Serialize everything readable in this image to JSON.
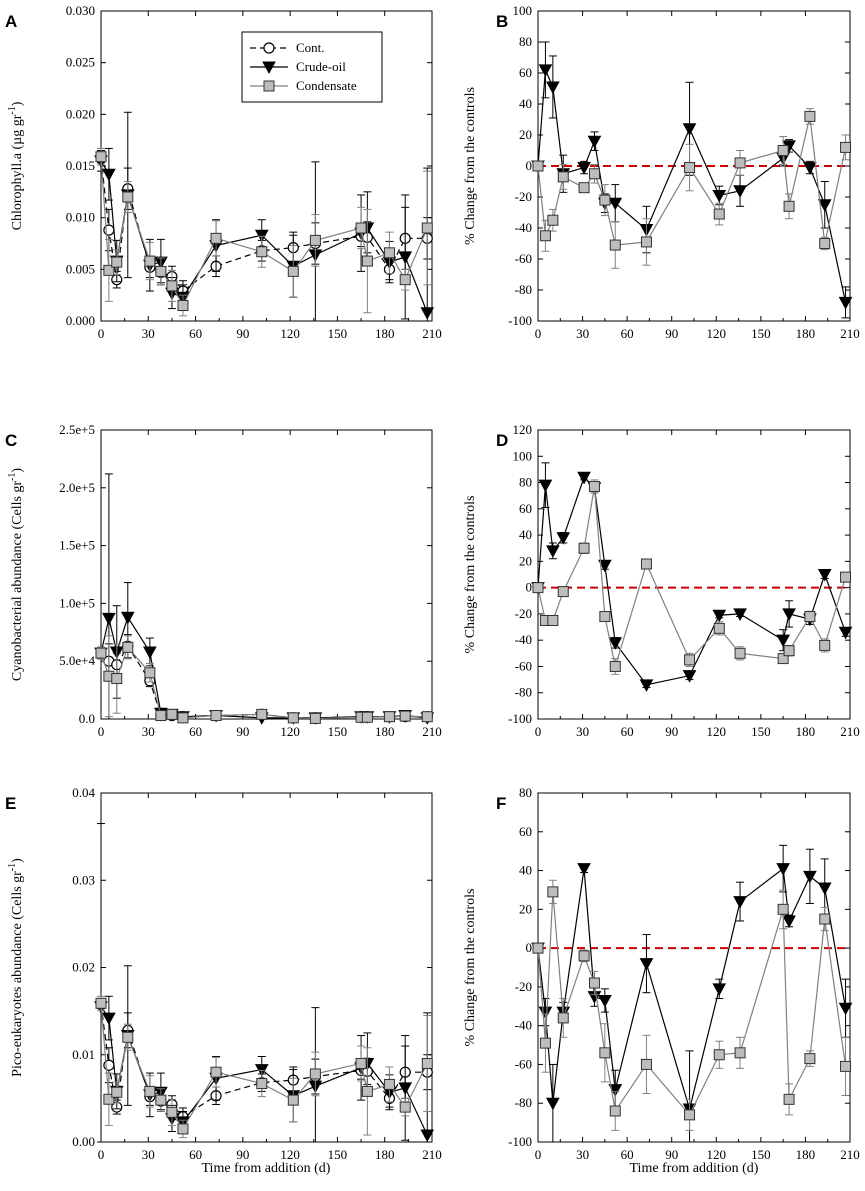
{
  "figure": {
    "xlabel": "Time from addition (d)",
    "legend": [
      "Cont.",
      "Crude-oil",
      "Condensate"
    ],
    "colors": {
      "control": "#000000",
      "crude": "#000000",
      "condensate": "#808080",
      "marker_fill_grey": "#bdbdbd",
      "zero_line": "#cc0000"
    }
  },
  "chart_data": [
    {
      "panel": "A",
      "type": "line",
      "ylabel": "Chlorophyll.a (µg gr",
      "ylabel_sup": "-1",
      "ylabel_end": ")",
      "xlim": [
        0,
        210
      ],
      "ylim": [
        0,
        0.03
      ],
      "xticks": [
        "0",
        "30",
        "60",
        "90",
        "120",
        "150",
        "180",
        "210"
      ],
      "yticks": [
        "0.000",
        "0.005",
        "0.010",
        "0.015",
        "0.020",
        "0.025",
        "0.030"
      ],
      "legend_location": "top-center",
      "series": [
        {
          "name": "Cont.",
          "marker": "circle",
          "x": [
            0,
            5,
            10,
            17,
            31,
            38,
            45,
            52,
            73,
            102,
            122,
            136,
            165,
            169,
            183,
            193,
            207
          ],
          "y": [
            0.0158,
            0.0088,
            0.004,
            0.0128,
            0.0052,
            0.0047,
            0.0043,
            0.0029,
            0.0053,
            0.0068,
            0.0071,
            0.0075,
            0.0082,
            0.0081,
            0.005,
            0.008,
            0.008
          ],
          "err": [
            0.0005,
            0.002,
            0.0008,
            0.002,
            0.001,
            0.001,
            0.001,
            0.001,
            0.001,
            0.001,
            0.0015,
            0.002,
            0.001,
            0.0015,
            0.001,
            0.003,
            0.002
          ]
        },
        {
          "name": "Crude-oil",
          "marker": "triangle",
          "x": [
            0,
            5,
            10,
            17,
            31,
            38,
            45,
            52,
            73,
            102,
            122,
            136,
            165,
            169,
            183,
            193,
            207
          ],
          "y": [
            0.0155,
            0.0142,
            0.0058,
            0.0122,
            0.0054,
            0.0057,
            0.0027,
            0.0023,
            0.0073,
            0.0083,
            0.0053,
            0.0064,
            0.0085,
            0.009,
            0.0057,
            0.0062,
            0.0008
          ],
          "err": [
            0.001,
            0.0025,
            0.002,
            0.008,
            0.0025,
            0.0022,
            0.0015,
            0.0012,
            0.0025,
            0.0015,
            0.003,
            0.009,
            0.0037,
            0.0035,
            0.002,
            0.006,
            0.014
          ]
        },
        {
          "name": "Condensate",
          "marker": "square",
          "x": [
            0,
            5,
            10,
            17,
            31,
            38,
            45,
            52,
            73,
            102,
            122,
            136,
            165,
            169,
            183,
            193,
            207
          ],
          "y": [
            0.0159,
            0.0049,
            0.0057,
            0.012,
            0.0058,
            0.0048,
            0.0034,
            0.0015,
            0.008,
            0.0067,
            0.0048,
            0.0078,
            0.009,
            0.0058,
            0.0066,
            0.004,
            0.009
          ],
          "err": [
            0.0008,
            0.003,
            0.0012,
            0.0015,
            0.0018,
            0.0013,
            0.0015,
            0.001,
            0.0017,
            0.0015,
            0.0025,
            0.0025,
            0.002,
            0.005,
            0.002,
            0.001,
            0.0055
          ]
        }
      ]
    },
    {
      "panel": "B",
      "type": "line",
      "ylabel": "% Change from the controls",
      "xlim": [
        0,
        210
      ],
      "ylim": [
        -100,
        100
      ],
      "xticks": [
        "0",
        "30",
        "60",
        "90",
        "120",
        "150",
        "180",
        "210"
      ],
      "yticks": [
        "-100",
        "-80",
        "-60",
        "-40",
        "-20",
        "0",
        "20",
        "40",
        "60",
        "80",
        "100"
      ],
      "zero_line": true,
      "series": [
        {
          "name": "Crude-oil",
          "marker": "triangle",
          "x": [
            0,
            5,
            10,
            17,
            31,
            38,
            45,
            52,
            73,
            102,
            122,
            136,
            165,
            169,
            183,
            193,
            207
          ],
          "y": [
            0,
            62,
            51,
            -5,
            -1,
            16,
            -24,
            -24,
            -41,
            24,
            -19,
            -16,
            5,
            13,
            -1,
            -25,
            -88
          ],
          "err": [
            0,
            18,
            20,
            12,
            4,
            6,
            6,
            12,
            15,
            30,
            6,
            10,
            5,
            4,
            4,
            15,
            10
          ]
        },
        {
          "name": "Condensate",
          "marker": "square",
          "x": [
            0,
            5,
            10,
            17,
            31,
            38,
            45,
            52,
            73,
            102,
            122,
            136,
            165,
            169,
            183,
            193,
            207
          ],
          "y": [
            0,
            -45,
            -35,
            -7,
            -14,
            -5,
            -22,
            -51,
            -49,
            -1,
            -31,
            2,
            10,
            -26,
            32,
            -50,
            12
          ],
          "err": [
            0,
            10,
            7,
            8,
            3,
            6,
            10,
            15,
            15,
            15,
            7,
            8,
            9,
            8,
            5,
            4,
            8
          ]
        }
      ]
    },
    {
      "panel": "C",
      "type": "line",
      "ylabel": "Cyanobacterial abundance (Cells gr",
      "ylabel_sup": "-1",
      "ylabel_end": ")",
      "xlim": [
        0,
        210
      ],
      "ylim": [
        0,
        250000
      ],
      "xticks": [
        "0",
        "30",
        "60",
        "90",
        "120",
        "150",
        "180",
        "210"
      ],
      "yticks": [
        "0.0",
        "5.0e+4",
        "1.0e+5",
        "1.5e+5",
        "2.0e+5",
        "2.5e+5"
      ],
      "series": [
        {
          "name": "Cont.",
          "marker": "circle",
          "x": [
            0,
            5,
            10,
            17,
            31,
            38,
            45,
            52,
            73,
            102,
            122,
            136,
            165,
            169,
            183,
            193,
            207
          ],
          "y": [
            57000,
            50000,
            47000,
            63000,
            33000,
            3000,
            3000,
            2000,
            3000,
            4000,
            1000,
            1000,
            2000,
            2000,
            2000,
            2000,
            2000
          ],
          "err": [
            5000,
            15000,
            10000,
            10000,
            5000,
            1000,
            1000,
            800,
            1000,
            1000,
            500,
            500,
            1000,
            1000,
            1000,
            1000,
            1000
          ]
        },
        {
          "name": "Crude-oil",
          "marker": "triangle",
          "x": [
            0,
            5,
            10,
            17,
            31,
            38,
            45,
            52,
            73,
            102,
            122,
            136,
            165,
            169,
            183,
            193,
            207
          ],
          "y": [
            57000,
            87000,
            58000,
            88000,
            58000,
            5000,
            4000,
            2000,
            3000,
            1000,
            1000,
            1000,
            2000,
            2000,
            2000,
            3000,
            1000
          ],
          "err": [
            5000,
            125000,
            40000,
            30000,
            12000,
            2000,
            1500,
            1000,
            1000,
            800,
            500,
            500,
            1000,
            1000,
            1000,
            1000,
            500
          ]
        },
        {
          "name": "Condensate",
          "marker": "square",
          "x": [
            0,
            5,
            10,
            17,
            31,
            38,
            45,
            52,
            73,
            102,
            122,
            136,
            165,
            169,
            183,
            193,
            207
          ],
          "y": [
            57000,
            37000,
            35000,
            62000,
            40000,
            3000,
            4000,
            1000,
            3000,
            4000,
            1000,
            500,
            1500,
            1500,
            2000,
            2500,
            2000
          ],
          "err": [
            5000,
            35000,
            30000,
            10000,
            8000,
            1000,
            1000,
            500,
            1000,
            1500,
            500,
            300,
            800,
            800,
            800,
            800,
            800
          ]
        }
      ]
    },
    {
      "panel": "D",
      "type": "line",
      "ylabel": "% Change from the controls",
      "xlim": [
        0,
        210
      ],
      "ylim": [
        -100,
        120
      ],
      "xticks": [
        "0",
        "30",
        "60",
        "90",
        "120",
        "150",
        "180",
        "210"
      ],
      "yticks": [
        "-100",
        "-80",
        "-60",
        "-40",
        "-20",
        "0",
        "20",
        "40",
        "60",
        "80",
        "100",
        "120"
      ],
      "zero_line": true,
      "series": [
        {
          "name": "Crude-oil",
          "marker": "triangle",
          "x": [
            0,
            5,
            10,
            17,
            31,
            38,
            45,
            52,
            73,
            102,
            122,
            136,
            165,
            169,
            183,
            193,
            207
          ],
          "y": [
            0,
            78,
            28,
            38,
            84,
            76,
            17,
            -42,
            -74,
            -67,
            -21,
            -20,
            -40,
            -20,
            -24,
            10,
            -34
          ],
          "err": [
            0,
            17,
            6,
            4,
            2,
            4,
            3,
            4,
            2,
            3,
            2,
            2,
            8,
            10,
            4,
            3,
            3
          ]
        },
        {
          "name": "Condensate",
          "marker": "square",
          "x": [
            0,
            5,
            10,
            17,
            31,
            38,
            45,
            52,
            73,
            102,
            122,
            136,
            165,
            169,
            183,
            193,
            207
          ],
          "y": [
            0,
            -25,
            -25,
            -3,
            30,
            77,
            -22,
            -60,
            18,
            -55,
            -31,
            -50,
            -54,
            -48,
            -22,
            -44,
            8
          ],
          "err": [
            0,
            3,
            3,
            3,
            4,
            5,
            3,
            6,
            3,
            5,
            5,
            5,
            3,
            4,
            4,
            5,
            3
          ]
        }
      ]
    },
    {
      "panel": "E",
      "type": "line",
      "ylabel": "Pico-eukaryotes abundance (Cells gr",
      "ylabel_sup": "-1",
      "ylabel_end": ")",
      "xlim": [
        0,
        210
      ],
      "ylim": [
        0,
        0.04
      ],
      "xticks": [
        "0",
        "30",
        "60",
        "90",
        "120",
        "150",
        "180",
        "210"
      ],
      "yticks": [
        "0.00",
        "0.01",
        "0.02",
        "0.03",
        "0.04"
      ],
      "series": [
        {
          "name": "Cont.",
          "marker": "circle",
          "x": [
            0,
            5,
            10,
            17,
            31,
            38,
            45,
            52,
            73,
            102,
            122,
            136,
            165,
            169,
            183,
            193,
            207
          ],
          "y": [
            0.0158,
            0.0088,
            0.004,
            0.0128,
            0.0052,
            0.0047,
            0.0043,
            0.0029,
            0.0053,
            0.0068,
            0.0071,
            0.0075,
            0.0082,
            0.0081,
            0.005,
            0.008,
            0.008
          ],
          "err": [
            0.0005,
            0.002,
            0.0008,
            0.002,
            0.001,
            0.001,
            0.001,
            0.001,
            0.001,
            0.001,
            0.0015,
            0.002,
            0.001,
            0.0015,
            0.001,
            0.003,
            0.002
          ]
        },
        {
          "name": "Crude-oil",
          "marker": "triangle",
          "x": [
            0,
            5,
            10,
            17,
            31,
            38,
            45,
            52,
            73,
            102,
            122,
            136,
            165,
            169,
            183,
            193,
            207
          ],
          "y": [
            0.0155,
            0.0142,
            0.0058,
            0.0122,
            0.0054,
            0.0057,
            0.0027,
            0.0023,
            0.0073,
            0.0083,
            0.0053,
            0.0064,
            0.0085,
            0.009,
            0.0057,
            0.0062,
            0.0008
          ],
          "err": [
            0.021,
            0.0025,
            0.002,
            0.008,
            0.0025,
            0.0022,
            0.0015,
            0.0012,
            0.0025,
            0.0015,
            0.003,
            0.009,
            0.0037,
            0.0035,
            0.002,
            0.006,
            0.014
          ]
        },
        {
          "name": "Condensate",
          "marker": "square",
          "x": [
            0,
            5,
            10,
            17,
            31,
            38,
            45,
            52,
            73,
            102,
            122,
            136,
            165,
            169,
            183,
            193,
            207
          ],
          "y": [
            0.0159,
            0.0049,
            0.0057,
            0.012,
            0.0058,
            0.0048,
            0.0034,
            0.0015,
            0.008,
            0.0067,
            0.0048,
            0.0078,
            0.009,
            0.0058,
            0.0066,
            0.004,
            0.009
          ],
          "err": [
            0.0008,
            0.003,
            0.0012,
            0.0015,
            0.0018,
            0.0013,
            0.0015,
            0.001,
            0.0017,
            0.0015,
            0.0025,
            0.0025,
            0.002,
            0.005,
            0.002,
            0.001,
            0.0055
          ]
        }
      ]
    },
    {
      "panel": "F",
      "type": "line",
      "ylabel": "% Change from the controls",
      "xlim": [
        0,
        210
      ],
      "ylim": [
        -100,
        80
      ],
      "xticks": [
        "0",
        "30",
        "60",
        "90",
        "120",
        "150",
        "180",
        "210"
      ],
      "yticks": [
        "-100",
        "-80",
        "-60",
        "-40",
        "-20",
        "0",
        "20",
        "40",
        "60",
        "80"
      ],
      "zero_line": true,
      "series": [
        {
          "name": "Crude-oil",
          "marker": "triangle",
          "x": [
            0,
            5,
            10,
            17,
            31,
            38,
            45,
            52,
            73,
            102,
            122,
            136,
            165,
            169,
            183,
            193,
            207
          ],
          "y": [
            0,
            -33,
            -80,
            -33,
            41,
            -25,
            -27,
            -73,
            -8,
            -83,
            -21,
            24,
            41,
            14,
            37,
            31,
            -31
          ],
          "err": [
            0,
            7,
            20,
            5,
            2,
            5,
            6,
            10,
            15,
            30,
            5,
            10,
            12,
            3,
            14,
            15,
            15
          ]
        },
        {
          "name": "Condensate",
          "marker": "square",
          "x": [
            0,
            5,
            10,
            17,
            31,
            38,
            45,
            52,
            73,
            102,
            122,
            136,
            165,
            169,
            183,
            193,
            207
          ],
          "y": [
            0,
            -49,
            29,
            -36,
            -4,
            -18,
            -54,
            -84,
            -60,
            -86,
            -55,
            -54,
            20,
            -78,
            -57,
            15,
            -61
          ],
          "err": [
            0,
            15,
            6,
            10,
            3,
            6,
            15,
            10,
            15,
            8,
            7,
            8,
            10,
            8,
            4,
            6,
            15
          ]
        }
      ]
    }
  ]
}
